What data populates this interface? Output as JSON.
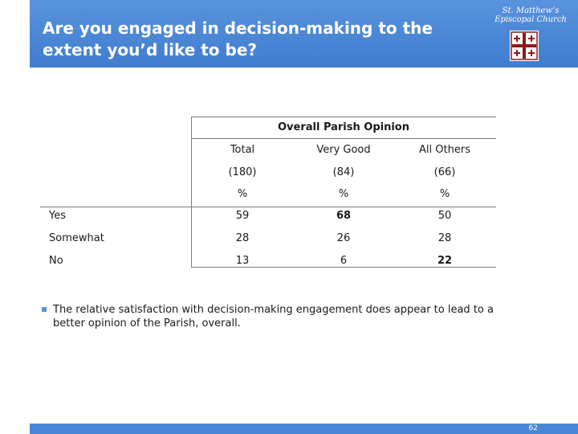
{
  "header": {
    "title": "Are you engaged in decision-making to the extent you’d like to be?",
    "logo_text": "St. Matthew’s Episcopal Church",
    "accent_color": "#4a86d6"
  },
  "table": {
    "group_title": "Overall Parish Opinion",
    "columns": [
      "Total",
      "Very Good",
      "All Others"
    ],
    "bases": [
      "(180)",
      "(84)",
      "(66)"
    ],
    "units": [
      "%",
      "%",
      "%"
    ],
    "rows": [
      {
        "label": "Yes",
        "values": [
          "59",
          "68",
          "50"
        ],
        "bold": [
          false,
          true,
          false
        ]
      },
      {
        "label": "Somewhat",
        "values": [
          "28",
          "26",
          "28"
        ],
        "bold": [
          false,
          false,
          false
        ]
      },
      {
        "label": "No",
        "values": [
          "13",
          "6",
          "22"
        ],
        "bold": [
          false,
          false,
          true
        ]
      }
    ]
  },
  "note": {
    "text": "The relative satisfaction with decision-making engagement does appear to lead to a better opinion of the Parish, overall."
  },
  "footer": {
    "page_number": "62"
  }
}
